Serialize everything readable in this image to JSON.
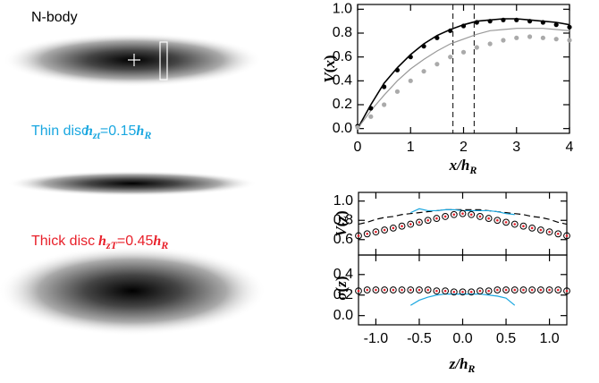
{
  "images": {
    "nbody": {
      "label": "N-body"
    },
    "thin": {
      "label": "Thin disc",
      "scale": [
        "h",
        "zt",
        "=0.15",
        "h",
        "R"
      ]
    },
    "thick": {
      "label": "Thick disc",
      "scale": [
        "h",
        "zT",
        "=0.45",
        "h",
        "R"
      ]
    }
  },
  "chart_data": [
    {
      "type": "line",
      "x_label": [
        "x",
        "/",
        "h",
        "R"
      ],
      "y_label": [
        "V",
        "(",
        "x",
        ")"
      ],
      "xlim": [
        0,
        4
      ],
      "xticks": [
        0,
        1,
        2,
        3,
        4
      ],
      "ylim": [
        -0.04,
        1.04
      ],
      "yticks": [
        {
          "value": 0,
          "label": "0.0"
        },
        {
          "value": 0.2,
          "label": "0.2"
        },
        {
          "value": 0.4,
          "label": "0.4"
        },
        {
          "value": 0.6,
          "label": "0.6"
        },
        {
          "value": 0.8,
          "label": "0.8"
        },
        {
          "value": 1,
          "label": "1.0"
        }
      ],
      "vlines": [
        1.8,
        2.2
      ],
      "x": [
        0,
        0.25,
        0.5,
        0.75,
        1,
        1.25,
        1.5,
        1.75,
        2,
        2.25,
        2.5,
        2.75,
        3,
        3.25,
        3.5,
        3.75,
        4
      ],
      "series": [
        {
          "color": "#000000",
          "style": "line",
          "values": [
            0,
            0.2,
            0.38,
            0.51,
            0.62,
            0.71,
            0.78,
            0.83,
            0.87,
            0.9,
            0.91,
            0.92,
            0.92,
            0.91,
            0.9,
            0.89,
            0.87
          ]
        },
        {
          "color": "#999999",
          "style": "line",
          "values": [
            0,
            0.15,
            0.28,
            0.4,
            0.5,
            0.58,
            0.65,
            0.71,
            0.75,
            0.79,
            0.82,
            0.83,
            0.84,
            0.84,
            0.84,
            0.83,
            0.82
          ]
        },
        {
          "color": "#000000",
          "style": "dots",
          "values": [
            0.02,
            0.17,
            0.35,
            0.49,
            0.6,
            0.69,
            0.76,
            0.82,
            0.86,
            0.89,
            0.9,
            0.91,
            0.91,
            0.9,
            0.89,
            0.87,
            0.85
          ]
        },
        {
          "color": "#aaaaaa",
          "style": "dots",
          "values": [
            0.01,
            0.1,
            0.2,
            0.31,
            0.4,
            0.48,
            0.54,
            0.6,
            0.64,
            0.68,
            0.71,
            0.74,
            0.76,
            0.77,
            0.76,
            0.75,
            0.74
          ]
        }
      ]
    },
    {
      "type": "line",
      "y_label": [
        "V",
        "(",
        "z",
        ")"
      ],
      "xlim": [
        -1.2,
        1.2
      ],
      "xticks": [
        -1,
        -0.5,
        0,
        0.5,
        1
      ],
      "ylim": [
        0.44,
        1.09
      ],
      "yticks": [
        {
          "value": 0.6,
          "label": "0.6"
        },
        {
          "value": 0.8,
          "label": "0.8"
        },
        {
          "value": 1,
          "label": "1.0"
        }
      ],
      "x": [
        -1.2,
        -1.1,
        -1.0,
        -0.9,
        -0.8,
        -0.7,
        -0.6,
        -0.5,
        -0.4,
        -0.3,
        -0.2,
        -0.1,
        0,
        0.1,
        0.2,
        0.3,
        0.4,
        0.5,
        0.6,
        0.7,
        0.8,
        0.9,
        1.0,
        1.1,
        1.2
      ],
      "series": [
        {
          "color": "#000000",
          "style": "dashed",
          "values": [
            0.76,
            0.78,
            0.81,
            0.83,
            0.84,
            0.86,
            0.87,
            0.88,
            0.89,
            0.9,
            0.91,
            0.91,
            0.91,
            0.91,
            0.91,
            0.9,
            0.89,
            0.88,
            0.87,
            0.86,
            0.84,
            0.83,
            0.81,
            0.78,
            0.76
          ]
        },
        {
          "color": "#1aa7e0",
          "style": "line",
          "values": [
            null,
            null,
            null,
            null,
            null,
            null,
            0.88,
            0.92,
            0.9,
            0.9,
            0.91,
            0.91,
            0.9,
            0.9,
            0.9,
            0.9,
            0.89,
            0.87,
            0.86,
            null,
            null,
            null,
            null,
            null,
            null
          ]
        },
        {
          "color": "#000000",
          "style": "circles",
          "values": [
            0.64,
            0.66,
            0.68,
            0.7,
            0.72,
            0.74,
            0.76,
            0.78,
            0.8,
            0.82,
            0.84,
            0.86,
            0.87,
            0.86,
            0.84,
            0.82,
            0.8,
            0.78,
            0.76,
            0.74,
            0.72,
            0.7,
            0.68,
            0.66,
            0.64
          ]
        },
        {
          "color": "#e8202a",
          "style": "smalldots",
          "values": [
            0.64,
            0.66,
            0.68,
            0.7,
            0.72,
            0.74,
            0.76,
            0.78,
            0.8,
            0.82,
            0.84,
            0.86,
            0.87,
            0.86,
            0.84,
            0.82,
            0.8,
            0.78,
            0.76,
            0.74,
            0.72,
            0.7,
            0.68,
            0.66,
            0.64
          ]
        }
      ]
    },
    {
      "type": "line",
      "x_label": [
        "z",
        "/",
        "h",
        "R"
      ],
      "y_label": [
        "σ",
        "(",
        "z",
        ")"
      ],
      "xlim": [
        -1.2,
        1.2
      ],
      "xticks": [
        {
          "value": -1,
          "label": "-1.0"
        },
        {
          "value": -0.5,
          "label": "-0.5"
        },
        {
          "value": 0,
          "label": "0.0"
        },
        {
          "value": 0.5,
          "label": "0.5"
        },
        {
          "value": 1,
          "label": "1.0"
        }
      ],
      "ylim": [
        -0.09,
        0.59
      ],
      "yticks": [
        {
          "value": 0,
          "label": "0.0"
        },
        {
          "value": 0.2,
          "label": "0.2"
        },
        {
          "value": 0.4,
          "label": "0.4"
        }
      ],
      "x": [
        -1.2,
        -1.1,
        -1.0,
        -0.9,
        -0.8,
        -0.7,
        -0.6,
        -0.5,
        -0.4,
        -0.3,
        -0.2,
        -0.1,
        0,
        0.1,
        0.2,
        0.3,
        0.4,
        0.5,
        0.6,
        0.7,
        0.8,
        0.9,
        1.0,
        1.1,
        1.2
      ],
      "series": [
        {
          "color": "#1aa7e0",
          "style": "line",
          "values": [
            null,
            null,
            null,
            null,
            null,
            null,
            0.1,
            0.15,
            0.18,
            0.2,
            0.21,
            0.21,
            0.21,
            0.21,
            0.21,
            0.2,
            0.19,
            0.17,
            0.1,
            null,
            null,
            null,
            null,
            null,
            null
          ]
        },
        {
          "color": "#000000",
          "style": "circles",
          "values": [
            0.24,
            0.25,
            0.25,
            0.25,
            0.25,
            0.25,
            0.25,
            0.25,
            0.25,
            0.24,
            0.24,
            0.23,
            0.23,
            0.23,
            0.24,
            0.24,
            0.25,
            0.25,
            0.25,
            0.25,
            0.25,
            0.25,
            0.25,
            0.25,
            0.24
          ]
        },
        {
          "color": "#e8202a",
          "style": "smalldots",
          "values": [
            0.24,
            0.25,
            0.25,
            0.25,
            0.25,
            0.25,
            0.25,
            0.25,
            0.25,
            0.24,
            0.24,
            0.23,
            0.23,
            0.23,
            0.24,
            0.24,
            0.25,
            0.25,
            0.25,
            0.25,
            0.25,
            0.25,
            0.25,
            0.25,
            0.24
          ]
        }
      ]
    }
  ]
}
